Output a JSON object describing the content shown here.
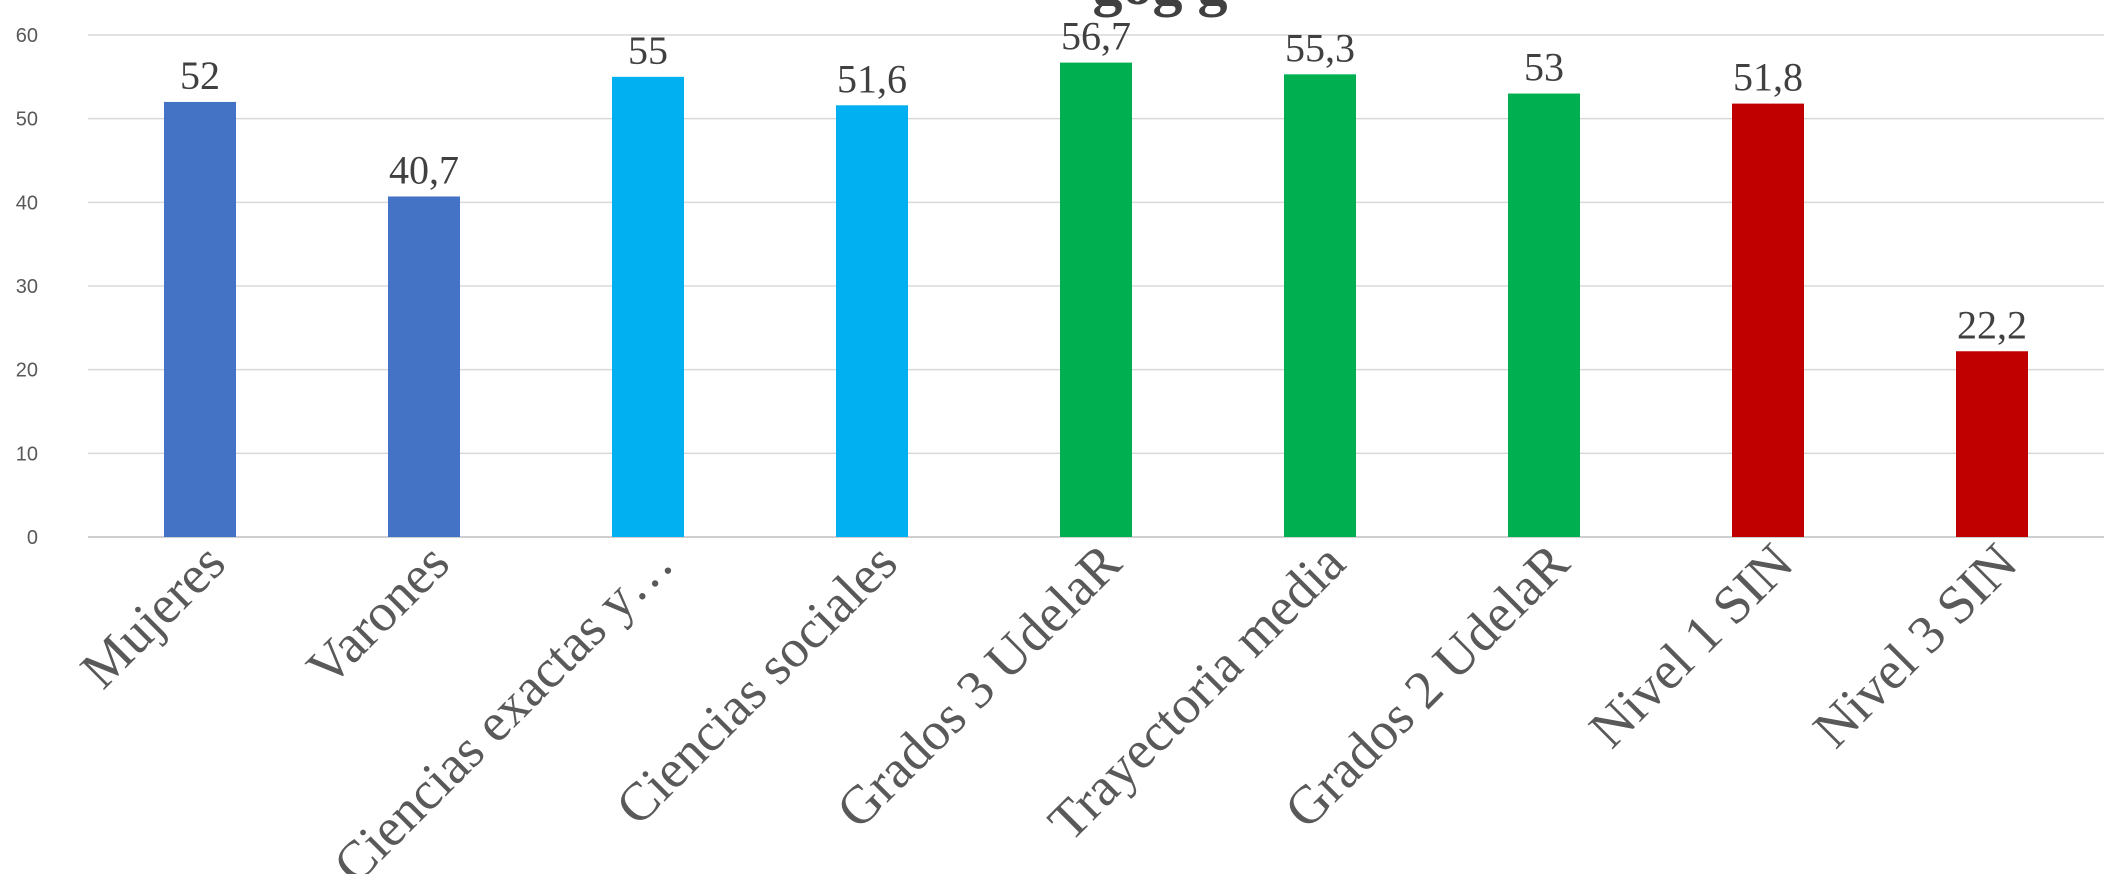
{
  "chart_data": {
    "type": "bar",
    "title_fragment": "gog g",
    "categories": [
      "Mujeres",
      "Varones",
      "Ciencias exactas y…",
      "Ciencias sociales",
      "Grados 3 UdelaR",
      "Trayectoria media",
      "Grados 2 UdelaR",
      "Nivel 1 SIN",
      "Nivel 3 SIN"
    ],
    "values": [
      52,
      40.7,
      55,
      51.6,
      56.7,
      55.3,
      53,
      51.8,
      22.2
    ],
    "value_labels": [
      "52",
      "40,7",
      "55",
      "51,6",
      "56,7",
      "55,3",
      "53",
      "51,8",
      "22,2"
    ],
    "colors": [
      "#4472C4",
      "#4472C4",
      "#00B0F0",
      "#00B0F0",
      "#00B050",
      "#00B050",
      "#00B050",
      "#C00000",
      "#C00000"
    ],
    "ylim": [
      0,
      60
    ],
    "yticks": [
      "0",
      "10",
      "20",
      "30",
      "40",
      "50",
      "60"
    ],
    "grid": true,
    "legend": "none"
  }
}
